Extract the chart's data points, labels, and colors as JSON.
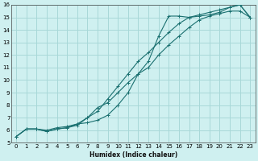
{
  "xlabel": "Humidex (Indice chaleur)",
  "bg_color": "#cff0f0",
  "grid_color": "#a8d8d8",
  "line_color": "#1a7070",
  "xlim": [
    -0.5,
    23.5
  ],
  "ylim": [
    5,
    16
  ],
  "xticks": [
    0,
    1,
    2,
    3,
    4,
    5,
    6,
    7,
    8,
    9,
    10,
    11,
    12,
    13,
    14,
    15,
    16,
    17,
    18,
    19,
    20,
    21,
    22,
    23
  ],
  "yticks": [
    5,
    6,
    7,
    8,
    9,
    10,
    11,
    12,
    13,
    14,
    15,
    16
  ],
  "line1_x": [
    0,
    1,
    2,
    3,
    4,
    5,
    6,
    7,
    8,
    9,
    10,
    11,
    12,
    13,
    14,
    15,
    16,
    17,
    18,
    19,
    20,
    21,
    22,
    23
  ],
  "line1_y": [
    5.5,
    6.1,
    6.1,
    6.0,
    6.2,
    6.3,
    6.5,
    6.6,
    6.8,
    7.2,
    8.0,
    9.0,
    10.5,
    11.5,
    13.5,
    15.1,
    15.1,
    15.0,
    15.1,
    15.2,
    15.4,
    15.8,
    16.0,
    15.0
  ],
  "line2_x": [
    0,
    1,
    2,
    3,
    4,
    5,
    6,
    7,
    8,
    9,
    10,
    11,
    12,
    13,
    14,
    15,
    16,
    17,
    18,
    19,
    20,
    21,
    22,
    23
  ],
  "line2_y": [
    5.5,
    6.1,
    6.1,
    5.9,
    6.1,
    6.2,
    6.5,
    7.0,
    7.5,
    8.5,
    9.5,
    10.5,
    11.5,
    12.2,
    13.0,
    13.8,
    14.5,
    15.0,
    15.2,
    15.4,
    15.6,
    15.8,
    16.0,
    15.0
  ],
  "line3_x": [
    0,
    1,
    2,
    3,
    4,
    5,
    6,
    7,
    8,
    9,
    10,
    11,
    12,
    13,
    14,
    15,
    16,
    17,
    18,
    19,
    20,
    21,
    22,
    23
  ],
  "line3_y": [
    5.5,
    6.1,
    6.1,
    5.9,
    6.1,
    6.2,
    6.4,
    7.0,
    7.8,
    8.2,
    9.0,
    9.8,
    10.5,
    11.0,
    12.0,
    12.8,
    13.5,
    14.2,
    14.8,
    15.1,
    15.3,
    15.5,
    15.5,
    15.0
  ]
}
